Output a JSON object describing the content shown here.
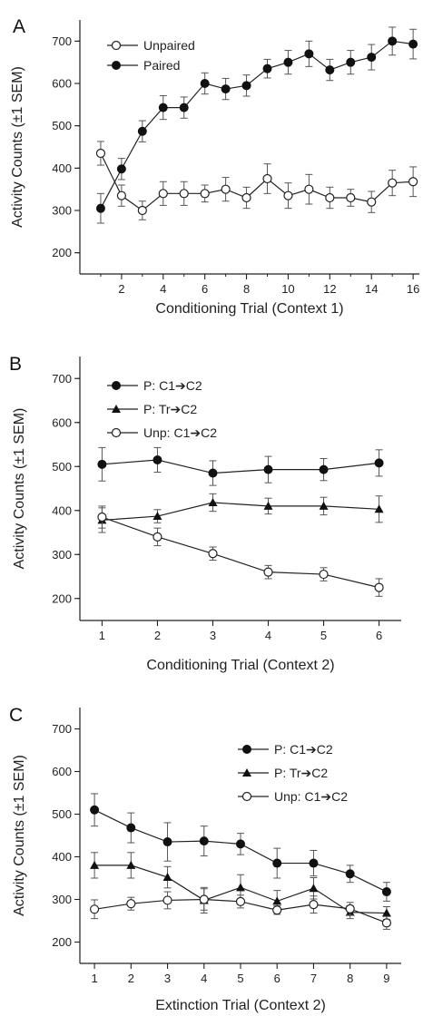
{
  "chart_data": [
    {
      "panel": "A",
      "type": "line",
      "xlabel": "Conditioning Trial (Context 1)",
      "ylabel": "Activity Counts (±1 SEM)",
      "xlim": [
        0,
        16.3
      ],
      "ylim": [
        150,
        750
      ],
      "xticks": [
        2,
        4,
        6,
        8,
        10,
        12,
        14,
        16
      ],
      "yticks": [
        200,
        300,
        400,
        500,
        600,
        700
      ],
      "legend_position": "top-left",
      "series": [
        {
          "name": "Unpaired",
          "marker": "open-circle",
          "x": [
            1,
            2,
            3,
            4,
            5,
            6,
            7,
            8,
            9,
            10,
            11,
            12,
            13,
            14,
            15,
            16
          ],
          "y": [
            435,
            335,
            300,
            340,
            340,
            340,
            350,
            330,
            375,
            335,
            350,
            330,
            330,
            320,
            365,
            368
          ],
          "err": [
            28,
            25,
            22,
            28,
            28,
            20,
            28,
            25,
            35,
            30,
            35,
            25,
            20,
            25,
            30,
            35
          ]
        },
        {
          "name": "Paired",
          "marker": "filled-circle",
          "x": [
            1,
            2,
            3,
            4,
            5,
            6,
            7,
            8,
            9,
            10,
            11,
            12,
            13,
            14,
            15,
            16
          ],
          "y": [
            305,
            398,
            487,
            543,
            543,
            600,
            587,
            595,
            635,
            650,
            670,
            632,
            650,
            662,
            700,
            693
          ],
          "err": [
            35,
            25,
            25,
            28,
            25,
            25,
            25,
            25,
            22,
            28,
            30,
            25,
            28,
            30,
            33,
            35
          ]
        }
      ]
    },
    {
      "panel": "B",
      "type": "line",
      "xlabel": "Conditioning Trial (Context 2)",
      "ylabel": "Activity Counts (±1 SEM)",
      "xlim": [
        0.6,
        6.4
      ],
      "ylim": [
        150,
        750
      ],
      "xticks": [
        1,
        2,
        3,
        4,
        5,
        6
      ],
      "yticks": [
        200,
        300,
        400,
        500,
        600,
        700
      ],
      "legend_position": "top-left",
      "series": [
        {
          "name": "P: C1➔C2",
          "marker": "filled-circle",
          "x": [
            1,
            2,
            3,
            4,
            5,
            6
          ],
          "y": [
            505,
            515,
            485,
            493,
            493,
            508
          ],
          "err": [
            38,
            28,
            28,
            30,
            25,
            30
          ]
        },
        {
          "name": "P: Tr➔C2",
          "marker": "filled-triangle",
          "x": [
            1,
            2,
            3,
            4,
            5,
            6
          ],
          "y": [
            378,
            387,
            418,
            410,
            410,
            403
          ],
          "err": [
            28,
            15,
            20,
            18,
            20,
            30
          ]
        },
        {
          "name": "Unp: C1➔C2",
          "marker": "open-circle",
          "x": [
            1,
            2,
            3,
            4,
            5,
            6
          ],
          "y": [
            385,
            340,
            302,
            260,
            255,
            225
          ],
          "err": [
            25,
            20,
            15,
            15,
            15,
            20
          ]
        }
      ]
    },
    {
      "panel": "C",
      "type": "line",
      "xlabel": "Extinction Trial (Context 2)",
      "ylabel": "Activity Counts (±1 SEM)",
      "xlim": [
        0.6,
        9.4
      ],
      "ylim": [
        150,
        750
      ],
      "xticks": [
        1,
        2,
        3,
        4,
        5,
        6,
        7,
        8,
        9
      ],
      "yticks": [
        200,
        300,
        400,
        500,
        600,
        700
      ],
      "legend_position": "top-right",
      "series": [
        {
          "name": "P: C1➔C2",
          "marker": "filled-circle",
          "x": [
            1,
            2,
            3,
            4,
            5,
            6,
            7,
            8,
            9
          ],
          "y": [
            510,
            468,
            435,
            437,
            430,
            385,
            385,
            360,
            318
          ],
          "err": [
            38,
            35,
            45,
            35,
            25,
            35,
            30,
            20,
            22
          ]
        },
        {
          "name": "P: Tr➔C2",
          "marker": "filled-triangle",
          "x": [
            1,
            2,
            3,
            4,
            5,
            6,
            7,
            8,
            9
          ],
          "y": [
            380,
            380,
            352,
            298,
            328,
            296,
            326,
            270,
            268
          ],
          "err": [
            30,
            30,
            25,
            30,
            30,
            25,
            25,
            15,
            15
          ]
        },
        {
          "name": "Unp: C1➔C2",
          "marker": "open-circle",
          "x": [
            1,
            2,
            3,
            4,
            5,
            6,
            7,
            8,
            9
          ],
          "y": [
            277,
            290,
            298,
            300,
            295,
            275,
            288,
            278,
            245
          ],
          "err": [
            22,
            15,
            20,
            25,
            15,
            10,
            20,
            15,
            15
          ]
        }
      ]
    }
  ]
}
